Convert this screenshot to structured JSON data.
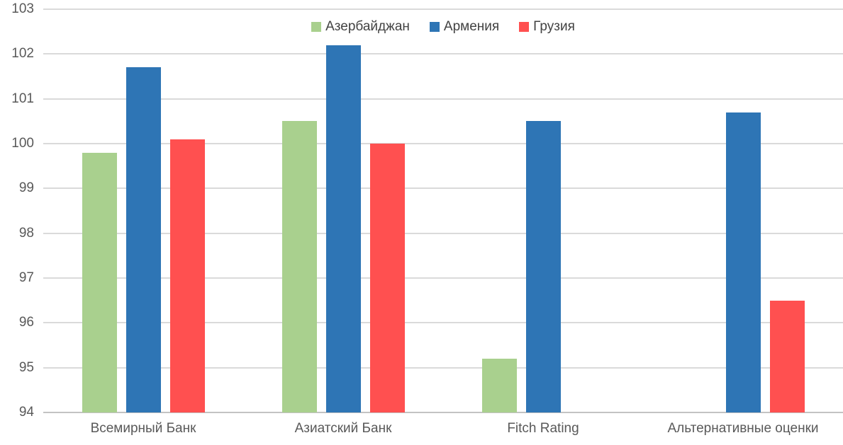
{
  "chart_data": {
    "type": "bar",
    "title": "",
    "xlabel": "",
    "ylabel": "",
    "categories": [
      "Всемирный Банк",
      "Азиатский Банк",
      "Fitch Rating",
      "Альтернативные оценки"
    ],
    "series": [
      {
        "name": "Азербайджан",
        "color": "#A9D08E",
        "values": [
          99.8,
          100.5,
          95.2,
          null
        ]
      },
      {
        "name": "Армения",
        "color": "#2E75B5",
        "values": [
          101.7,
          102.2,
          100.5,
          100.7
        ]
      },
      {
        "name": "Грузия",
        "color": "#FF5050",
        "values": [
          100.1,
          100.0,
          null,
          96.5
        ]
      }
    ],
    "ylim": [
      94,
      103
    ],
    "y_step": 1,
    "y_ticks": [
      "94",
      "95",
      "96",
      "97",
      "98",
      "99",
      "100",
      "101",
      "102",
      "103"
    ],
    "grid": "horizontal",
    "legend_position": "top-center"
  },
  "style": {
    "background": "#FFFFFF",
    "gridline_color": "#DADADA",
    "axis_line_color": "#C3C3C3",
    "tick_text_color": "#595959",
    "legend_text_color": "#424242"
  }
}
